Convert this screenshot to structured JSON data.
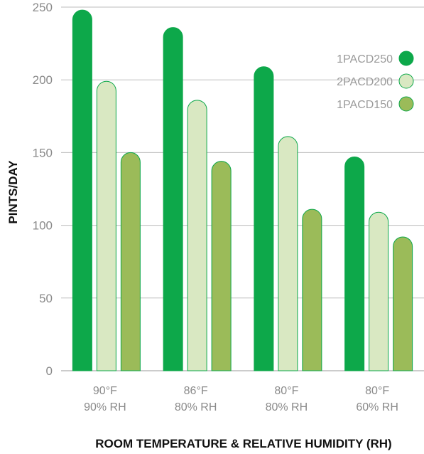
{
  "chart_data": {
    "type": "bar",
    "categories": [
      [
        "90°F",
        "90% RH"
      ],
      [
        "86°F",
        "80% RH"
      ],
      [
        "80°F",
        "80% RH"
      ],
      [
        "80°F",
        "60% RH"
      ]
    ],
    "series": [
      {
        "name": "1PACD250",
        "values": [
          248,
          236,
          209,
          147
        ],
        "color": "#0da84a"
      },
      {
        "name": "2PACD200",
        "values": [
          199,
          186,
          161,
          109
        ],
        "color": "#d9e8c2"
      },
      {
        "name": "1PACD150",
        "values": [
          150,
          144,
          111,
          92
        ],
        "color": "#9bbb59"
      }
    ],
    "xlabel": "ROOM TEMPERATURE & RELATIVE HUMIDITY (RH)",
    "ylabel": "PINTS/DAY",
    "ylim": [
      0,
      250
    ],
    "yticks": [
      0,
      50,
      100,
      150,
      200,
      250
    ],
    "grid": true,
    "legend": "top-right",
    "edge_color": "#0da84a",
    "grid_color": "#bdbdbd"
  }
}
